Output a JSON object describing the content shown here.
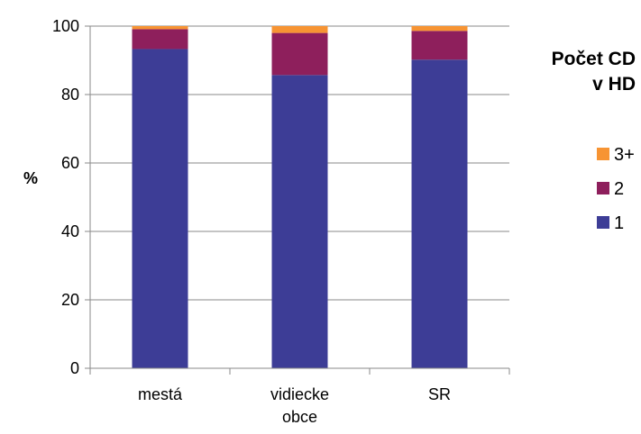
{
  "chart_data": {
    "type": "bar",
    "stacked": true,
    "categories": [
      [
        "mestá"
      ],
      [
        "vidiecke",
        "obce"
      ],
      [
        "SR"
      ]
    ],
    "series": [
      {
        "name": "1",
        "values": [
          93.3,
          85.7,
          90.2
        ],
        "color": "#3d3d96"
      },
      {
        "name": "2",
        "values": [
          5.8,
          12.3,
          8.4
        ],
        "color": "#8e1f5c"
      },
      {
        "name": "3+",
        "values": [
          0.9,
          2.0,
          1.4
        ],
        "color": "#f79433"
      }
    ],
    "ylabel": "%",
    "ylim": [
      0,
      100
    ],
    "yticks": [
      0,
      20,
      40,
      60,
      80,
      100
    ],
    "grid": true,
    "legend": {
      "title": [
        "Počet CD",
        "v HD"
      ],
      "placement": "right",
      "order": [
        "3+",
        "2",
        "1"
      ]
    }
  }
}
